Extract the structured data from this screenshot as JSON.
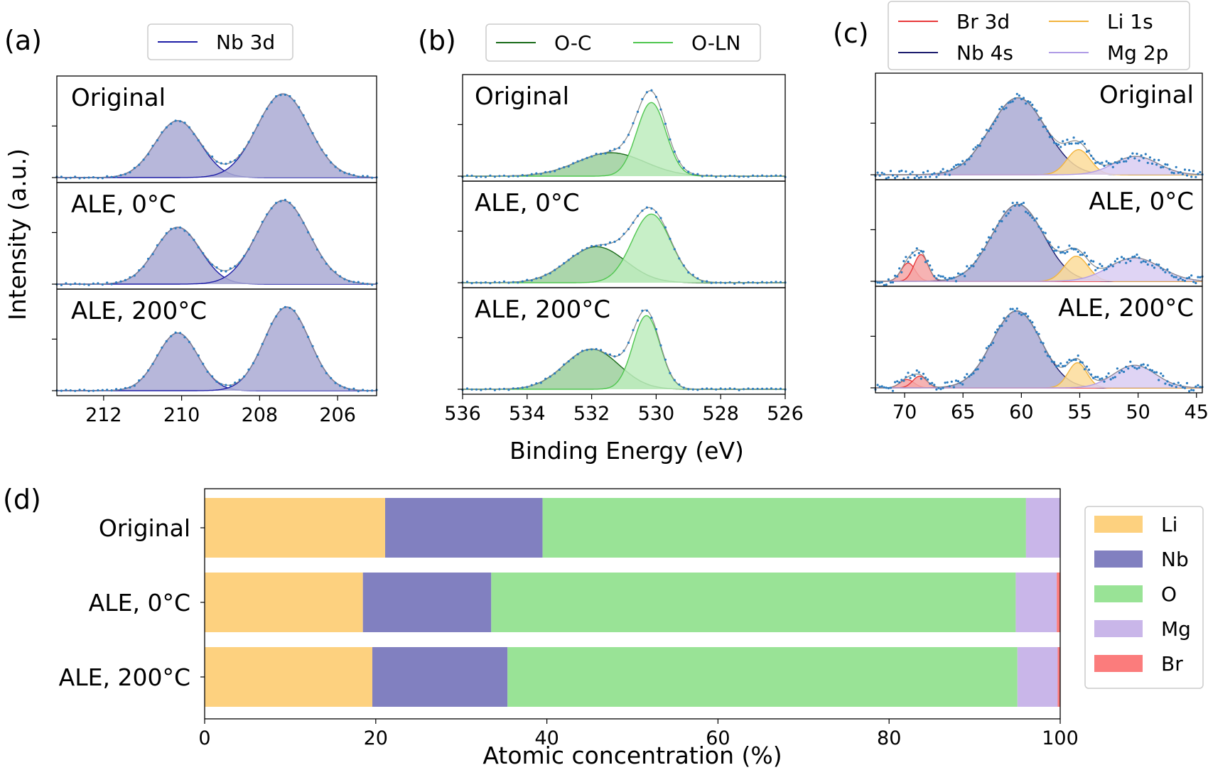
{
  "figure": {
    "panel_letters": [
      "(a)",
      "(b)",
      "(c)",
      "(d)"
    ],
    "shared_ylabel": "Intensity (a.u.)",
    "shared_xlabel_top": "Binding Energy (eV)",
    "row_labels": [
      "Original",
      "ALE, 0°C",
      "ALE, 200°C"
    ]
  },
  "chart_data": [
    {
      "panel": "(a)",
      "type": "area",
      "xlabel": "Binding Energy (eV)",
      "ylabel": "Intensity (a.u.)",
      "xlim": [
        213.2,
        205
      ],
      "xticks": [
        212,
        210,
        208,
        206
      ],
      "x_reversed": true,
      "legend": [
        "Nb 3d"
      ],
      "legend_position": "top",
      "colors": {
        "Nb 3d": "#1d1da6",
        "fill": "#aaaad4"
      },
      "rows": [
        {
          "label": "Original",
          "ymax": 1.12,
          "peaks": [
            {
              "series": "Nb 3d",
              "center": 210.1,
              "amp": 0.68,
              "sigma": 0.58
            },
            {
              "series": "Nb 3d",
              "center": 207.4,
              "amp": 1.0,
              "sigma": 0.67
            }
          ]
        },
        {
          "label": "ALE, 0°C",
          "ymax": 1.12,
          "peaks": [
            {
              "series": "Nb 3d",
              "center": 210.1,
              "amp": 0.68,
              "sigma": 0.58
            },
            {
              "series": "Nb 3d",
              "center": 207.4,
              "amp": 1.0,
              "sigma": 0.67
            }
          ]
        },
        {
          "label": "ALE, 200°C",
          "ymax": 1.12,
          "peaks": [
            {
              "series": "Nb 3d",
              "center": 210.1,
              "amp": 0.69,
              "sigma": 0.52
            },
            {
              "series": "Nb 3d",
              "center": 207.3,
              "amp": 1.0,
              "sigma": 0.58
            }
          ]
        }
      ]
    },
    {
      "panel": "(b)",
      "type": "area",
      "xlabel": "Binding Energy (eV)",
      "ylabel": "Intensity (a.u.)",
      "xlim": [
        536,
        526
      ],
      "xticks": [
        536,
        534,
        532,
        530,
        528,
        526
      ],
      "x_reversed": true,
      "legend": [
        "O-C",
        "O-LN"
      ],
      "legend_position": "top",
      "colors": {
        "O-C": "#1a6b1a",
        "O-LN": "#4fc64f",
        "fill_O-C": "#9ccf9c",
        "fill_O-LN": "#bdecbd"
      },
      "rows": [
        {
          "label": "Original",
          "ymax": 1.12,
          "peaks": [
            {
              "series": "O-C",
              "center": 531.4,
              "amp": 0.28,
              "sigma": 1.05
            },
            {
              "series": "O-LN",
              "center": 530.15,
              "amp": 0.88,
              "sigma": 0.45
            }
          ]
        },
        {
          "label": "ALE, 0°C",
          "ymax": 1.12,
          "peaks": [
            {
              "series": "O-C",
              "center": 531.85,
              "amp": 0.43,
              "sigma": 0.9
            },
            {
              "series": "O-LN",
              "center": 530.15,
              "amp": 0.82,
              "sigma": 0.6
            }
          ]
        },
        {
          "label": "ALE, 200°C",
          "ymax": 1.12,
          "peaks": [
            {
              "series": "O-C",
              "center": 532.0,
              "amp": 0.48,
              "sigma": 0.85
            },
            {
              "series": "O-LN",
              "center": 530.3,
              "amp": 0.88,
              "sigma": 0.42
            }
          ]
        }
      ]
    },
    {
      "panel": "(c)",
      "type": "area",
      "xlabel": "Binding Energy (eV)",
      "ylabel": "Intensity (a.u.)",
      "xlim": [
        72.5,
        44.5
      ],
      "xticks": [
        70,
        65,
        60,
        55,
        50,
        45
      ],
      "x_reversed": true,
      "legend": [
        "Br 3d",
        "Nb 4s",
        "Li 1s",
        "Mg 2p"
      ],
      "legend_position": "top",
      "colors": {
        "Br 3d": "#e8383a",
        "Nb 4s": "#1d1d6e",
        "Li 1s": "#f2b33c",
        "Mg 2p": "#b09ce6",
        "fill_Br 3d": "#f4a6a6",
        "fill_Nb 4s": "#aaaad4",
        "fill_Li 1s": "#fbdc9a",
        "fill_Mg 2p": "#d9ccf2"
      },
      "rows": [
        {
          "label": "Original",
          "ymax": 1.12,
          "peaks": [
            {
              "series": "Nb 4s",
              "center": 60.3,
              "amp": 0.92,
              "sigma": 2.4
            },
            {
              "series": "Li 1s",
              "center": 55.1,
              "amp": 0.3,
              "sigma": 1.0
            },
            {
              "series": "Mg 2p",
              "center": 50.2,
              "amp": 0.22,
              "sigma": 1.9
            }
          ]
        },
        {
          "label": "ALE, 0°C",
          "ymax": 1.12,
          "peaks": [
            {
              "series": "Br 3d",
              "center": 69.7,
              "amp": 0.22,
              "sigma": 0.6
            },
            {
              "series": "Br 3d",
              "center": 68.6,
              "amp": 0.32,
              "sigma": 0.6
            },
            {
              "series": "Nb 4s",
              "center": 60.3,
              "amp": 0.92,
              "sigma": 2.2
            },
            {
              "series": "Li 1s",
              "center": 55.3,
              "amp": 0.3,
              "sigma": 1.0
            },
            {
              "series": "Mg 2p",
              "center": 50.3,
              "amp": 0.28,
              "sigma": 2.2
            }
          ]
        },
        {
          "label": "ALE, 200°C",
          "ymax": 1.12,
          "peaks": [
            {
              "series": "Br 3d",
              "center": 69.8,
              "amp": 0.1,
              "sigma": 0.6
            },
            {
              "series": "Br 3d",
              "center": 68.7,
              "amp": 0.14,
              "sigma": 0.6
            },
            {
              "series": "Nb 4s",
              "center": 60.4,
              "amp": 0.92,
              "sigma": 2.1
            },
            {
              "series": "Li 1s",
              "center": 55.2,
              "amp": 0.3,
              "sigma": 0.8
            },
            {
              "series": "Mg 2p",
              "center": 50.3,
              "amp": 0.27,
              "sigma": 1.8
            }
          ]
        }
      ]
    },
    {
      "panel": "(d)",
      "type": "bar",
      "orientation": "horizontal",
      "stacked": true,
      "xlabel": "Atomic concentration (%)",
      "xlim": [
        0,
        100
      ],
      "xticks": [
        0,
        20,
        40,
        60,
        80,
        100
      ],
      "categories": [
        "Original",
        "ALE, 0°C",
        "ALE, 200°C"
      ],
      "legend_position": "right",
      "series": [
        {
          "name": "Li",
          "color": "#fdd17f",
          "values": [
            21.1,
            18.5,
            19.6
          ]
        },
        {
          "name": "Nb",
          "color": "#8180c0",
          "values": [
            18.4,
            15.0,
            15.8
          ]
        },
        {
          "name": "O",
          "color": "#99e396",
          "values": [
            56.5,
            61.3,
            59.6
          ]
        },
        {
          "name": "Mg",
          "color": "#c9b6e9",
          "values": [
            4.0,
            4.8,
            4.7
          ]
        },
        {
          "name": "Br",
          "color": "#fb7c7c",
          "values": [
            0.0,
            0.4,
            0.3
          ]
        }
      ]
    }
  ]
}
